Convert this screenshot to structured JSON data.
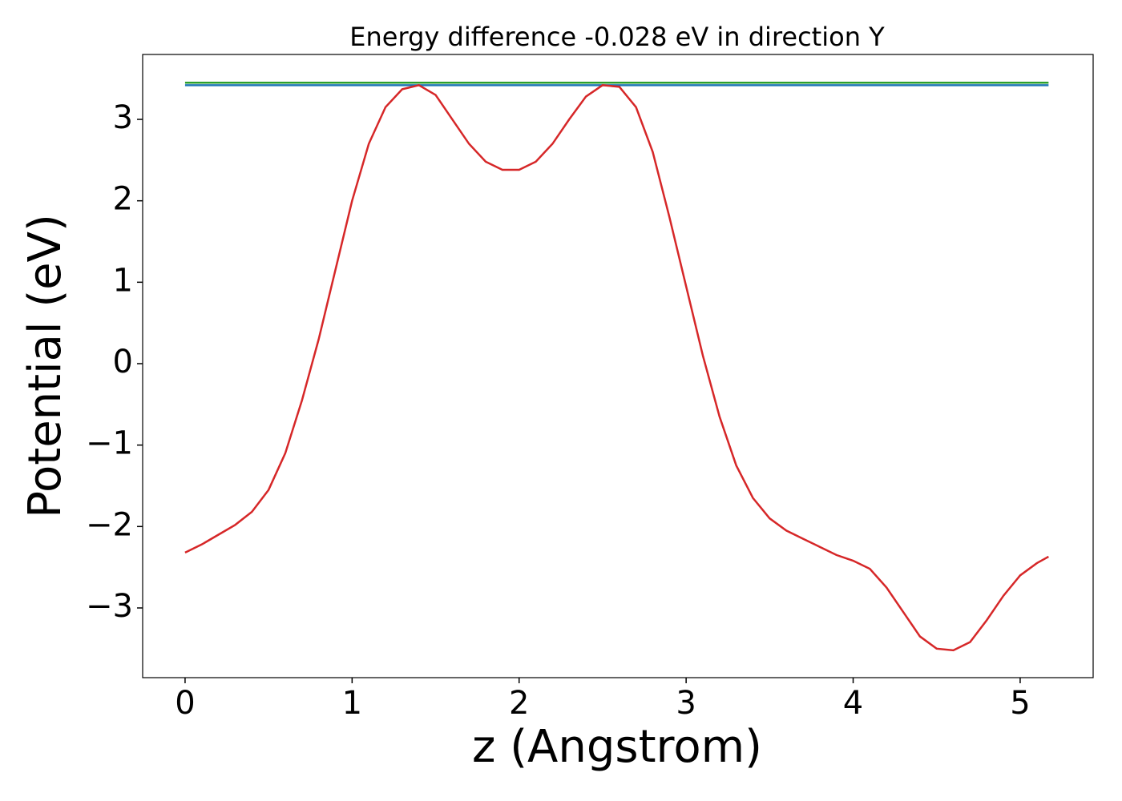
{
  "chart_data": {
    "type": "line",
    "title": "Energy difference -0.028 eV in direction Y",
    "x_label": "z (Angstrom)",
    "y_label": "Potential (eV)",
    "xlim": [
      -0.254,
      5.437
    ],
    "ylim": [
      -3.856,
      3.797
    ],
    "xticks": [
      0,
      1,
      2,
      3,
      4,
      5
    ],
    "yticks": [
      {
        "value": -3,
        "label": "−3"
      },
      {
        "value": -2,
        "label": "−2"
      },
      {
        "value": -1,
        "label": "−1"
      },
      0,
      1,
      2,
      3
    ],
    "series": [
      {
        "color": "#2ca02c",
        "x": [
          0,
          5.17
        ],
        "values": [
          3.45,
          3.45
        ]
      },
      {
        "color": "#1f77b4",
        "x": [
          0,
          5.17
        ],
        "values": [
          3.42,
          3.42
        ]
      },
      {
        "color": "#d62728",
        "x": [
          0,
          0.1,
          0.2,
          0.3,
          0.4,
          0.5,
          0.6,
          0.7,
          0.8,
          0.9,
          1.0,
          1.1,
          1.2,
          1.3,
          1.4,
          1.5,
          1.6,
          1.7,
          1.8,
          1.9,
          2.0,
          2.1,
          2.2,
          2.3,
          2.4,
          2.5,
          2.6,
          2.7,
          2.8,
          2.9,
          3.0,
          3.1,
          3.2,
          3.3,
          3.4,
          3.5,
          3.6,
          3.7,
          3.8,
          3.9,
          4.0,
          4.1,
          4.2,
          4.3,
          4.4,
          4.5,
          4.6,
          4.7,
          4.8,
          4.9,
          5.0,
          5.1,
          5.17
        ],
        "values": [
          -2.32,
          -2.22,
          -2.1,
          -1.98,
          -1.82,
          -1.55,
          -1.1,
          -0.45,
          0.3,
          1.15,
          2.0,
          2.7,
          3.15,
          3.37,
          3.42,
          3.3,
          3.0,
          2.7,
          2.48,
          2.38,
          2.38,
          2.48,
          2.7,
          3.0,
          3.28,
          3.42,
          3.4,
          3.15,
          2.6,
          1.8,
          0.95,
          0.1,
          -0.65,
          -1.25,
          -1.65,
          -1.9,
          -2.05,
          -2.15,
          -2.25,
          -2.35,
          -2.42,
          -2.52,
          -2.75,
          -3.05,
          -3.35,
          -3.5,
          -3.52,
          -3.42,
          -3.15,
          -2.85,
          -2.6,
          -2.45,
          -2.37
        ]
      }
    ]
  }
}
